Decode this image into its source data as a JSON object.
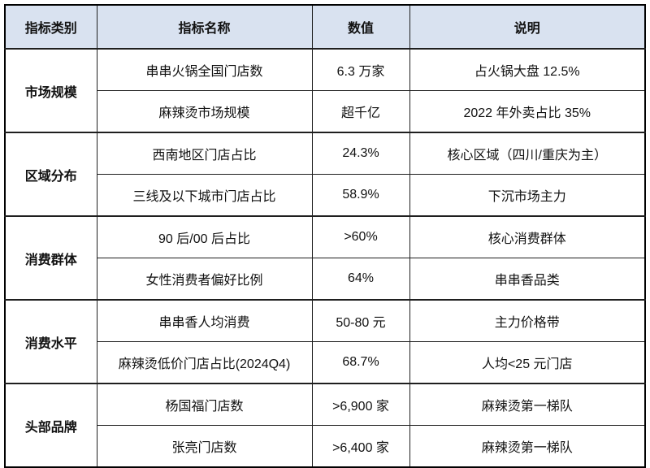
{
  "chart_data": {
    "type": "table",
    "title": "",
    "columns": [
      "指标类别",
      "指标名称",
      "数值",
      "说明"
    ],
    "colors": {
      "header_bg": "#d9e2f0",
      "border": "#1f1f1f",
      "text": "#111111"
    },
    "groups": [
      {
        "category": "市场规模",
        "rows": [
          {
            "name": "串串火锅全国门店数",
            "value": "6.3 万家",
            "note": "占火锅大盘 12.5%"
          },
          {
            "name": "麻辣烫市场规模",
            "value": "超千亿",
            "note": "2022 年外卖占比 35%"
          }
        ]
      },
      {
        "category": "区域分布",
        "rows": [
          {
            "name": "西南地区门店占比",
            "value": "24.3%",
            "note": "核心区域（四川/重庆为主）"
          },
          {
            "name": "三线及以下城市门店占比",
            "value": "58.9%",
            "note": "下沉市场主力"
          }
        ]
      },
      {
        "category": "消费群体",
        "rows": [
          {
            "name": "90 后/00 后占比",
            "value": ">60%",
            "note": "核心消费群体"
          },
          {
            "name": "女性消费者偏好比例",
            "value": "64%",
            "note": "串串香品类"
          }
        ]
      },
      {
        "category": "消费水平",
        "rows": [
          {
            "name": "串串香人均消费",
            "value": "50-80 元",
            "note": "主力价格带"
          },
          {
            "name": "麻辣烫低价门店占比(2024Q4)",
            "value": "68.7%",
            "note": "人均<25 元门店"
          }
        ]
      },
      {
        "category": "头部品牌",
        "rows": [
          {
            "name": "杨国福门店数",
            "value": ">6,900 家",
            "note": "麻辣烫第一梯队"
          },
          {
            "name": "张亮门店数",
            "value": ">6,400 家",
            "note": "麻辣烫第一梯队"
          }
        ]
      }
    ]
  }
}
